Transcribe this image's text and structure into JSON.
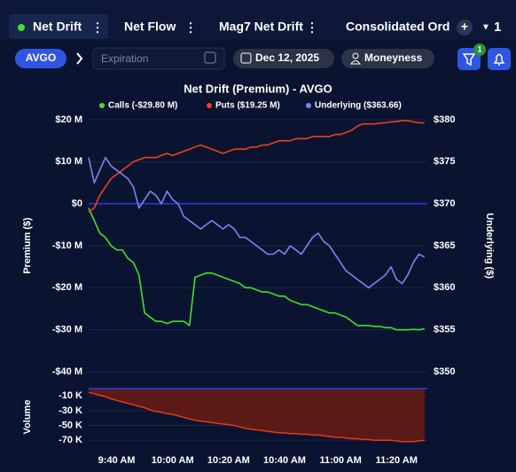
{
  "tabs": [
    {
      "label": "Net Drift",
      "active": true
    },
    {
      "label": "Net Flow"
    },
    {
      "label": "Mag7 Net Drift"
    },
    {
      "label": "Consolidated Ord"
    }
  ],
  "tab_count": "1",
  "toolbar": {
    "symbol": "AVGO",
    "expiration_placeholder": "Expiration",
    "date": "Dec 12, 2025",
    "moneyness": "Moneyness",
    "filter_badge": "1"
  },
  "chart_data": [
    {
      "type": "line",
      "title": "Net Drift (Premium) - AVGO",
      "ylabel": "Premium ($)",
      "y2label": "Underlying ($)",
      "x": [
        "09:30",
        "09:32",
        "09:34",
        "09:36",
        "09:38",
        "09:40",
        "09:42",
        "09:44",
        "09:46",
        "09:48",
        "09:50",
        "09:52",
        "09:54",
        "09:56",
        "09:58",
        "10:00",
        "10:02",
        "10:04",
        "10:06",
        "10:08",
        "10:10",
        "10:12",
        "10:14",
        "10:16",
        "10:18",
        "10:20",
        "10:22",
        "10:24",
        "10:26",
        "10:28",
        "10:30",
        "10:32",
        "10:34",
        "10:36",
        "10:38",
        "10:40",
        "10:42",
        "10:44",
        "10:46",
        "10:48",
        "10:50",
        "10:52",
        "10:54",
        "10:56",
        "10:58",
        "11:00",
        "11:02",
        "11:04",
        "11:06",
        "11:08",
        "11:10",
        "11:12",
        "11:14",
        "11:16",
        "11:18",
        "11:20",
        "11:22",
        "11:24",
        "11:26",
        "11:28",
        "11:30"
      ],
      "xlim": [
        "09:30",
        "11:31"
      ],
      "xticks": [
        {
          "value": "09:40",
          "label": "9:40 AM"
        },
        {
          "value": "10:00",
          "label": "10:00 AM"
        },
        {
          "value": "10:20",
          "label": "10:20 AM"
        },
        {
          "value": "10:40",
          "label": "10:40 AM"
        },
        {
          "value": "11:00",
          "label": "11:00 AM"
        },
        {
          "value": "11:20",
          "label": "11:20 AM"
        }
      ],
      "ylim": [
        -40,
        20
      ],
      "yticks": [
        {
          "value": 20,
          "label": "$20 M"
        },
        {
          "value": 10,
          "label": "$10 M"
        },
        {
          "value": 0,
          "label": "$0"
        },
        {
          "value": -10,
          "label": "-$10 M"
        },
        {
          "value": -20,
          "label": "-$20 M"
        },
        {
          "value": -30,
          "label": "-$30 M"
        },
        {
          "value": -40,
          "label": "-$40 M"
        }
      ],
      "y2lim": [
        350,
        380
      ],
      "y2ticks": [
        {
          "value": 380,
          "label": "$380"
        },
        {
          "value": 375,
          "label": "$375"
        },
        {
          "value": 370,
          "label": "$370"
        },
        {
          "value": 365,
          "label": "$365"
        },
        {
          "value": 360,
          "label": "$360"
        },
        {
          "value": 355,
          "label": "$355"
        },
        {
          "value": 350,
          "label": "$350"
        }
      ],
      "grid": true,
      "zero_line_color": "#2a3de0",
      "series": [
        {
          "name": "Calls (-$29.80 M)",
          "color": "#3fe02c",
          "values": [
            -1,
            -4,
            -7,
            -8,
            -10,
            -11,
            -11,
            -13,
            -14,
            -17,
            -26,
            -27,
            -28,
            -28,
            -28.5,
            -28,
            -28,
            -28,
            -29,
            -17.5,
            -17,
            -16.5,
            -16.5,
            -17,
            -17.5,
            -18,
            -18.5,
            -19,
            -20,
            -20,
            -20.5,
            -21,
            -21,
            -21.5,
            -22,
            -22,
            -23,
            -23.5,
            -24,
            -24,
            -24.5,
            -25,
            -25.5,
            -26,
            -26,
            -26.5,
            -27,
            -28,
            -29,
            -29,
            -29,
            -29.2,
            -29.2,
            -29.5,
            -29.5,
            -30,
            -30,
            -30,
            -29.9,
            -30,
            -29.8
          ]
        },
        {
          "name": "Puts ($19.25 M)",
          "color": "#ea411d",
          "values": [
            -2,
            -1,
            2,
            4,
            6,
            7,
            8,
            9,
            10,
            10.5,
            11,
            11,
            11,
            11.5,
            12,
            11.5,
            12,
            12.5,
            13,
            13.5,
            14,
            13.5,
            13,
            12.5,
            12,
            12.5,
            13,
            13,
            13,
            13.5,
            13.5,
            14,
            14,
            14.5,
            15,
            15,
            15,
            15.5,
            15.5,
            15.5,
            16,
            16,
            16,
            16,
            16.5,
            16.5,
            17,
            17.5,
            18.5,
            19,
            19,
            19,
            19.2,
            19.3,
            19.5,
            19.6,
            19.8,
            19.8,
            19.5,
            19.3,
            19.25
          ]
        },
        {
          "name": "Underlying ($363.66)",
          "color": "#7a86ec",
          "axis": "y2",
          "values": [
            375.5,
            372.5,
            374,
            375.5,
            374.5,
            374,
            373.5,
            373,
            372,
            369.5,
            370.5,
            371.5,
            371,
            370,
            371.5,
            370.5,
            370,
            368.5,
            368,
            367.5,
            367,
            367.5,
            368,
            367.5,
            367,
            367.5,
            367,
            366,
            366,
            365.5,
            365,
            364.5,
            364,
            364,
            364.5,
            364,
            365,
            364.5,
            364,
            365,
            366,
            366.5,
            365.5,
            365,
            364,
            363,
            362,
            361.5,
            361,
            360.5,
            360,
            360.5,
            361,
            361.5,
            362.5,
            361,
            360.5,
            361.5,
            363,
            364,
            363.66
          ]
        }
      ]
    },
    {
      "type": "area",
      "ylabel": "Volume",
      "x": [
        "09:30",
        "09:32",
        "09:34",
        "09:36",
        "09:38",
        "09:40",
        "09:42",
        "09:44",
        "09:46",
        "09:48",
        "09:50",
        "09:52",
        "09:54",
        "09:56",
        "09:58",
        "10:00",
        "10:02",
        "10:04",
        "10:06",
        "10:08",
        "10:10",
        "10:12",
        "10:14",
        "10:16",
        "10:18",
        "10:20",
        "10:22",
        "10:24",
        "10:26",
        "10:28",
        "10:30",
        "10:32",
        "10:34",
        "10:36",
        "10:38",
        "10:40",
        "10:42",
        "10:44",
        "10:46",
        "10:48",
        "10:50",
        "10:52",
        "10:54",
        "10:56",
        "10:58",
        "11:00",
        "11:02",
        "11:04",
        "11:06",
        "11:08",
        "11:10",
        "11:12",
        "11:14",
        "11:16",
        "11:18",
        "11:20",
        "11:22",
        "11:24",
        "11:26",
        "11:28",
        "11:30"
      ],
      "xlim": [
        "09:30",
        "11:31"
      ],
      "ylim": [
        -77,
        0
      ],
      "yticks": [
        {
          "value": -10,
          "label": "-10 K"
        },
        {
          "value": -30,
          "label": "-30 K"
        },
        {
          "value": -50,
          "label": "-50 K"
        },
        {
          "value": -70,
          "label": "-70 K"
        }
      ],
      "grid": true,
      "zero_line_color": "#2a3de0",
      "color": "#e2391c",
      "fill": "#5c1a16",
      "values": [
        -5,
        -7,
        -9,
        -11,
        -14,
        -16,
        -18,
        -20,
        -22,
        -24,
        -26,
        -29,
        -31,
        -32,
        -34,
        -35,
        -37,
        -39,
        -41,
        -43,
        -44,
        -45,
        -46,
        -47,
        -48,
        -49,
        -50,
        -52,
        -54,
        -55,
        -56,
        -57,
        -58,
        -59,
        -60,
        -60,
        -61,
        -61,
        -62,
        -62,
        -63,
        -63,
        -64,
        -65,
        -66,
        -66,
        -67,
        -68,
        -68,
        -69,
        -69,
        -70,
        -70,
        -70,
        -70,
        -71,
        -72,
        -72,
        -72,
        -71,
        -70
      ]
    }
  ]
}
